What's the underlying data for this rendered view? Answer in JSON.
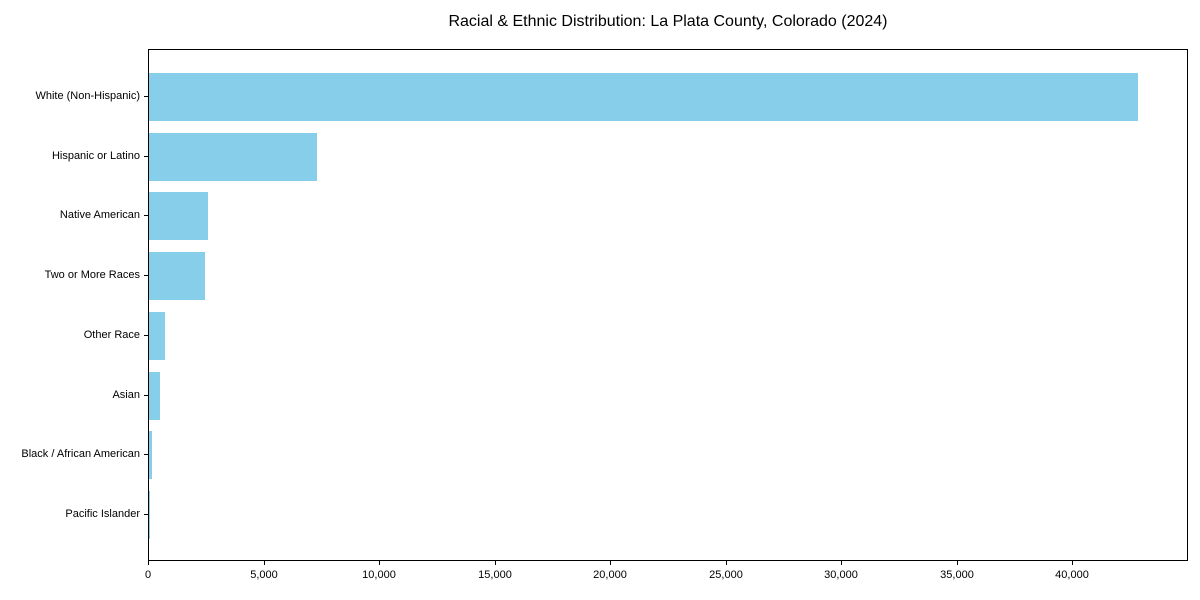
{
  "chart_data": {
    "type": "bar",
    "orientation": "horizontal",
    "title": "Racial & Ethnic Distribution: La Plata County, Colorado (2024)",
    "categories": [
      "White (Non-Hispanic)",
      "Hispanic or Latino",
      "Native American",
      "Two or More Races",
      "Other Race",
      "Asian",
      "Black / African American",
      "Pacific Islander"
    ],
    "values": [
      42800,
      7250,
      2570,
      2420,
      690,
      470,
      130,
      25
    ],
    "xlabel": "",
    "ylabel": "",
    "xlim": [
      0,
      45000
    ],
    "xticks": [
      0,
      5000,
      10000,
      15000,
      20000,
      25000,
      30000,
      35000,
      40000
    ],
    "xtick_labels": [
      "0",
      "5,000",
      "10,000",
      "15,000",
      "20,000",
      "25,000",
      "30,000",
      "35,000",
      "40,000"
    ],
    "bar_color": "#87CEEB",
    "spine_color": "#000000",
    "text_color": "#000000",
    "background_color": "#ffffff",
    "grid": false,
    "legend_position": "none"
  }
}
